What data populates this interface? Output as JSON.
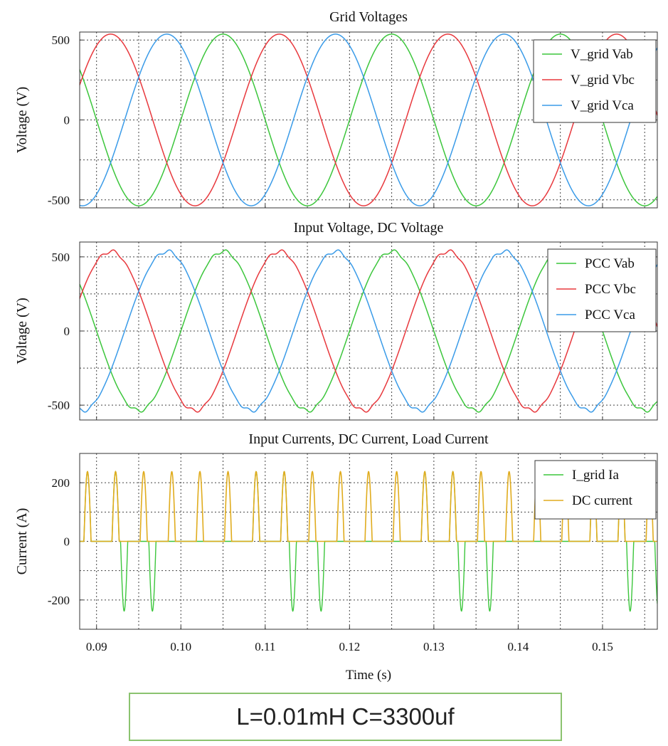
{
  "chart_data": [
    {
      "type": "line",
      "title": "Grid Voltages",
      "ylabel": "Voltage (V)",
      "xlabel": "",
      "xlim": [
        0.088,
        0.1565
      ],
      "ylim": [
        -550,
        550
      ],
      "yticks": [
        500,
        0,
        -500
      ],
      "ytick_labels": [
        "500",
        "0",
        "-500"
      ],
      "grid": true,
      "legend_position": "top-right",
      "series": [
        {
          "name": "V_grid Vab",
          "color": "#3cc63c",
          "amplitude": 537,
          "phase_deg": 0,
          "frequency_hz": 50
        },
        {
          "name": "V_grid Vbc",
          "color": "#e8383d",
          "amplitude": 537,
          "phase_deg": -120,
          "frequency_hz": 50
        },
        {
          "name": "V_grid Vca",
          "color": "#3a9be8",
          "amplitude": 537,
          "phase_deg": 120,
          "frequency_hz": 50
        }
      ]
    },
    {
      "type": "line",
      "title": "Input Voltage, DC Voltage",
      "ylabel": "Voltage (V)",
      "xlabel": "",
      "xlim": [
        0.088,
        0.1565
      ],
      "ylim": [
        -600,
        600
      ],
      "yticks": [
        500,
        0,
        -500
      ],
      "ytick_labels": [
        "500",
        "0",
        "-500"
      ],
      "grid": true,
      "legend_position": "top-right",
      "series": [
        {
          "name": "PCC Vab",
          "color": "#3cc63c",
          "amplitude": 537,
          "phase_deg": 0,
          "frequency_hz": 50
        },
        {
          "name": "PCC Vbc",
          "color": "#e8383d",
          "amplitude": 537,
          "phase_deg": -120,
          "frequency_hz": 50
        },
        {
          "name": "PCC Vca",
          "color": "#3a9be8",
          "amplitude": 537,
          "phase_deg": 120,
          "frequency_hz": 50
        }
      ]
    },
    {
      "type": "line",
      "title": "Input Currents, DC Current, Load Current",
      "ylabel": "Current (A)",
      "xlabel": "Time (s)",
      "xlim": [
        0.088,
        0.1565
      ],
      "ylim": [
        -300,
        300
      ],
      "yticks": [
        200,
        0,
        -200
      ],
      "ytick_labels": [
        "200",
        "0",
        "-200"
      ],
      "xticks": [
        0.09,
        0.1,
        0.11,
        0.12,
        0.13,
        0.14,
        0.15
      ],
      "xtick_labels": [
        "0.09",
        "0.10",
        "0.11",
        "0.12",
        "0.13",
        "0.14",
        "0.15"
      ],
      "grid": true,
      "legend_position": "top-right",
      "series": [
        {
          "name": "I_grid Ia",
          "color": "#3cc63c",
          "peak": 238,
          "pulse_width_s": 0.00085
        },
        {
          "name": "DC current",
          "color": "#e0ac1e",
          "peak": 238,
          "pulse_width_s": 0.00085
        }
      ]
    }
  ],
  "caption": "L=0.01mH C=3300uf"
}
